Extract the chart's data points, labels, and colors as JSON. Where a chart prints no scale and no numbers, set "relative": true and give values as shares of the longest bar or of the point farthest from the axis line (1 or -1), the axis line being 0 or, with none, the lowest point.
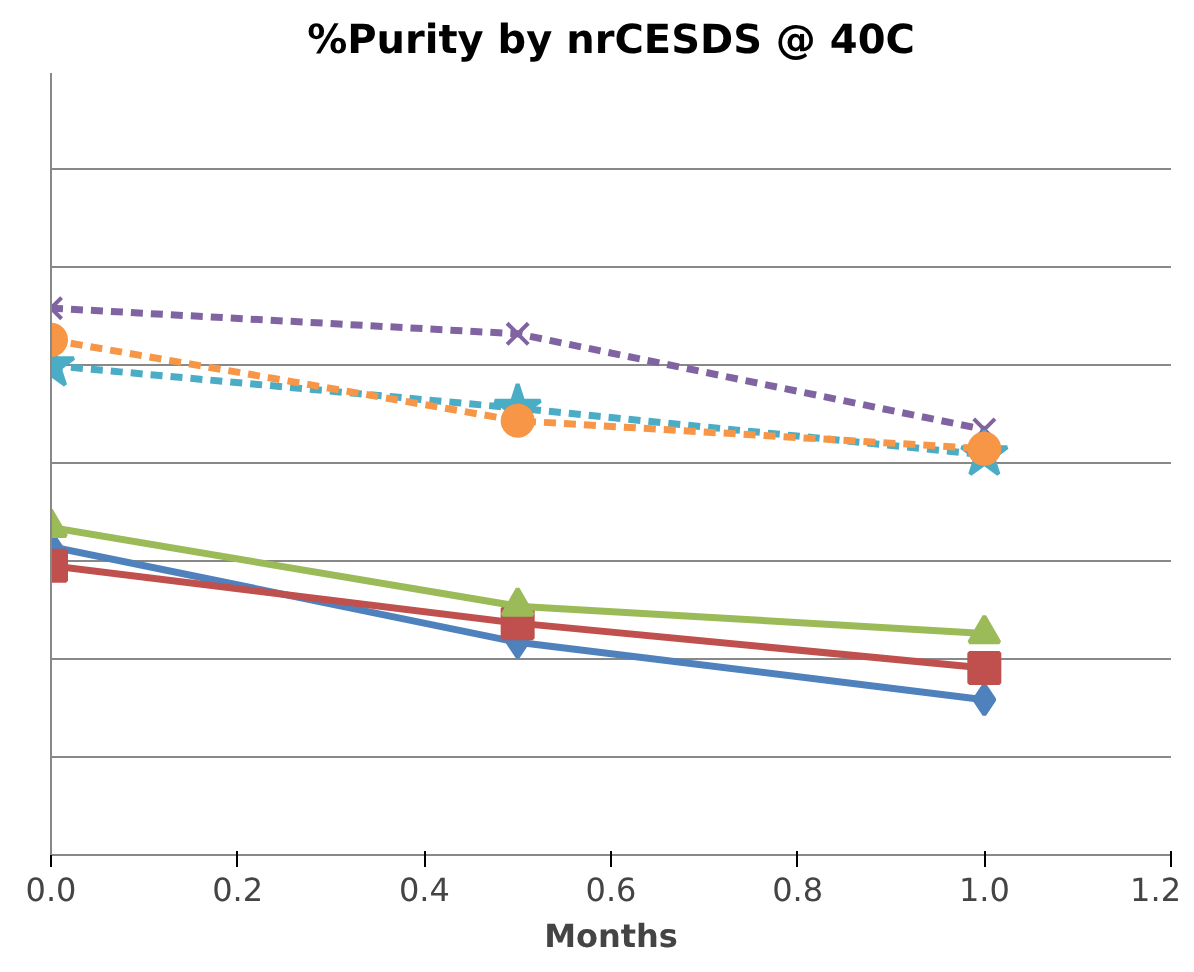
{
  "chart_data": {
    "type": "line",
    "title": "%Purity by nrCESDS @ 40C",
    "xlabel": "Months",
    "relative": true,
    "grid": "y",
    "x": [
      0,
      0.5,
      1.0
    ],
    "xlim": [
      0,
      1.2
    ],
    "xticks": [
      {
        "value": 0,
        "label": "0.0"
      },
      {
        "value": 0.2,
        "label": "0.2"
      },
      {
        "value": 0.4,
        "label": "0.4"
      },
      {
        "value": 0.6,
        "label": "0.6"
      },
      {
        "value": 0.8,
        "label": "0.8"
      },
      {
        "value": 1.0,
        "label": "1.0"
      },
      {
        "value": 1.2,
        "label": "1.2"
      }
    ],
    "series": [
      {
        "color": "#4f81bd",
        "values": [
          0.564,
          0.389,
          0.284
        ],
        "marker": "diamond",
        "line_style": "solid"
      },
      {
        "color": "#c0504d",
        "values": [
          0.529,
          0.424,
          0.342
        ],
        "marker": "square",
        "line_style": "solid"
      },
      {
        "color": "#9bbb59",
        "values": [
          0.599,
          0.455,
          0.405
        ],
        "marker": "triangle",
        "line_style": "solid"
      },
      {
        "color": "#8064a2",
        "values": [
          1.0,
          0.953,
          0.778
        ],
        "marker": "cross",
        "line_style": "dashed"
      },
      {
        "color": "#4bacc6",
        "values": [
          0.895,
          0.817,
          0.732
        ],
        "marker": "star",
        "line_style": "dashed"
      },
      {
        "color": "#f79646",
        "values": [
          0.942,
          0.794,
          0.743
        ],
        "marker": "circle",
        "line_style": "dashed"
      }
    ]
  }
}
